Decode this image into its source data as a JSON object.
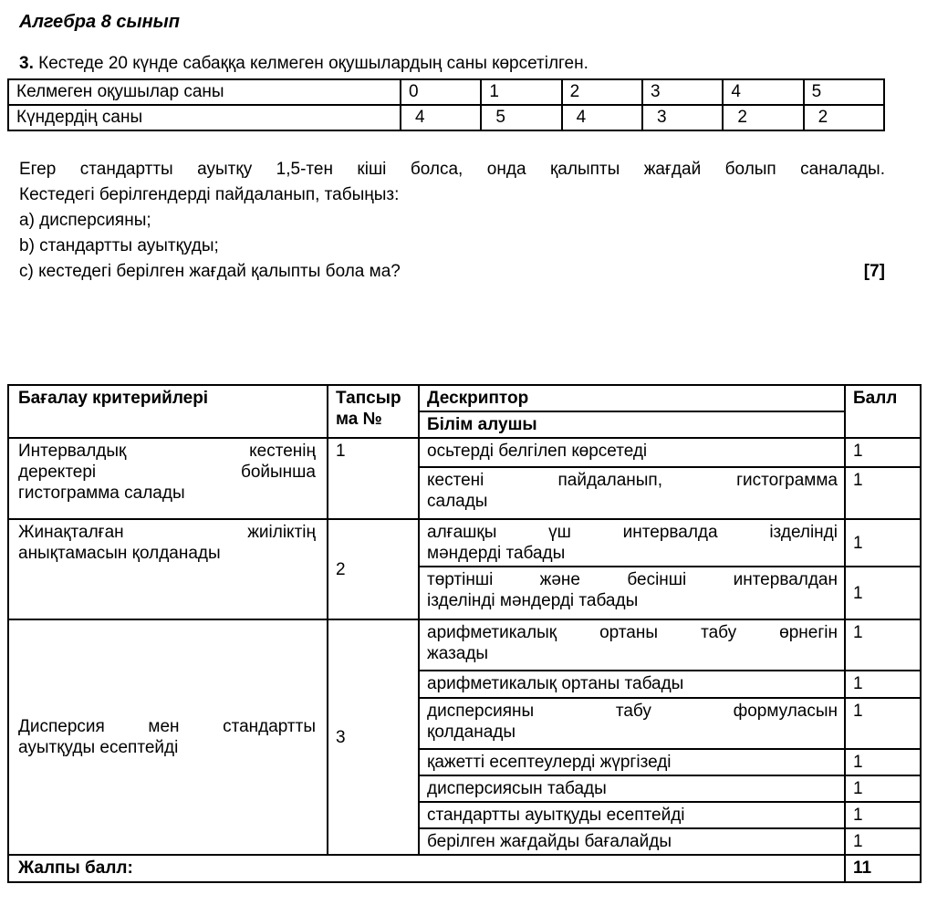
{
  "doc": {
    "title": "Алгебра 8 сынып"
  },
  "problem": {
    "number": "3.",
    "text": " Кестеде 20 күнде сабаққа келмеген оқушылардың саны көрсетілген."
  },
  "absence_table": {
    "rows": [
      {
        "label": "Келмеген оқушылар саны",
        "values": [
          "0",
          "1",
          "2",
          "3",
          "4",
          "5"
        ]
      },
      {
        "label": "Күндердің саны",
        "values": [
          "4",
          "5",
          "4",
          "3",
          "2",
          "2"
        ]
      }
    ]
  },
  "intro": {
    "lines": "Егер стандартты ауытқу 1,5-тен кіші болса, онда қалыпты жағдай болып саналады.\nКестедегі берілгендерді пайдаланып, табыңыз:",
    "item_a": "a) дисперсияны;",
    "item_b": "b) стандартты ауытқуды;",
    "item_c": "c) кестедегі берілген жағдай қалыпты бола ма?",
    "marks": "[7]"
  },
  "rubric": {
    "headers": {
      "criteria": "Бағалау критерийлері",
      "task": "Тапсыр\nма №",
      "descriptor": "Дескриптор",
      "student": "Білім алушы",
      "score": "Балл"
    },
    "groups": [
      {
        "criteria": "Интервалдық кестенің\nдеректері бойынша\nгистограмма салады",
        "task": "1",
        "descriptors": [
          {
            "text": "осьтерді белгілеп көрсетеді",
            "score": "1"
          },
          {
            "text": "кестені пайдаланып, гистограмма\nсалады",
            "score": "1"
          }
        ]
      },
      {
        "criteria": "Жинақталған жиіліктің\nанықтамасын қолданады",
        "task": "2",
        "descriptors": [
          {
            "text": "алғашқы үш интервалда ізделінді\nмәндерді табады",
            "score": "1"
          },
          {
            "text": "төртінші және бесінші интервалдан\nізделінді мәндерді табады",
            "score": "1"
          }
        ]
      },
      {
        "criteria": "Дисперсия мен стандартты\nауытқуды есептейді",
        "task": "3",
        "descriptors": [
          {
            "text": "арифметикалық ортаны табу өрнегін\nжазады",
            "score": "1"
          },
          {
            "text": "арифметикалық ортаны табады",
            "score": "1"
          },
          {
            "text": "дисперсияны табу формуласын\nқолданады",
            "score": "1"
          },
          {
            "text": "қажетті есептеулерді жүргізеді",
            "score": "1"
          },
          {
            "text": "дисперсиясын табады",
            "score": "1"
          },
          {
            "text": "стандартты ауытқуды есептейді",
            "score": "1"
          },
          {
            "text": "берілген жағдайды бағалайды",
            "score": "1"
          }
        ]
      }
    ],
    "footer": {
      "label": "Жалпы балл:",
      "total": "11"
    }
  }
}
